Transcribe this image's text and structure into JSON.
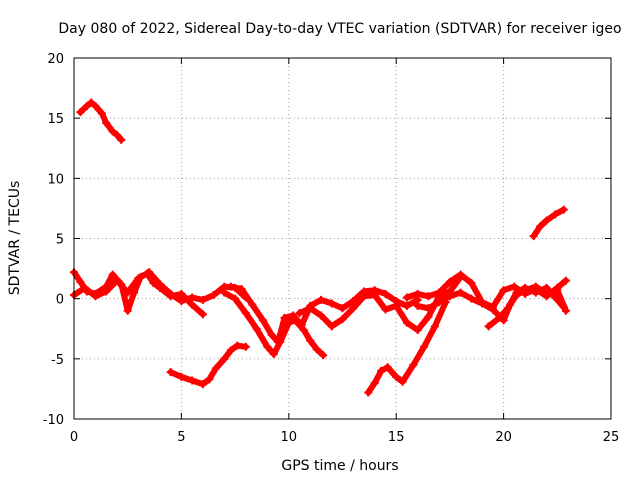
{
  "chart_data": {
    "type": "scatter",
    "title": "Day 080 of 2022, Sidereal Day-to-day VTEC variation (SDTVAR) for receiver igeo",
    "xlabel": "GPS time / hours",
    "ylabel": "SDTVAR / TECUs",
    "xlim": [
      0,
      25
    ],
    "ylim": [
      -10,
      20
    ],
    "xticks": [
      "0",
      "5",
      "10",
      "15",
      "20",
      "25"
    ],
    "yticks": [
      "-10",
      "-5",
      "0",
      "5",
      "10",
      "15",
      "20"
    ],
    "grid": true,
    "color": "#ff0000",
    "series": [
      {
        "name": "arc-01",
        "x": [
          0.3,
          0.6,
          0.8,
          1.0,
          1.3,
          1.5,
          1.8,
          2.0,
          2.2
        ],
        "y": [
          15.5,
          16.0,
          16.3,
          16.0,
          15.4,
          14.6,
          13.9,
          13.6,
          13.2
        ]
      },
      {
        "name": "arc-02",
        "x": [
          4.5,
          5.0,
          5.5,
          6.0,
          6.3,
          6.6,
          7.0,
          7.3,
          7.6,
          8.0
        ],
        "y": [
          -6.1,
          -6.5,
          -6.8,
          -7.1,
          -6.7,
          -5.8,
          -5.0,
          -4.3,
          -3.9,
          -4.0
        ]
      },
      {
        "name": "arc-03",
        "x": [
          13.7,
          14.0,
          14.3,
          14.6,
          15.0,
          15.3,
          15.8,
          16.3,
          16.8,
          17.3
        ],
        "y": [
          -7.8,
          -7.0,
          -6.0,
          -5.7,
          -6.5,
          -6.9,
          -5.5,
          -4.0,
          -2.3,
          -0.3
        ]
      },
      {
        "name": "arc-04",
        "x": [
          21.4,
          21.7,
          22.0,
          22.4,
          22.8
        ],
        "y": [
          5.2,
          6.0,
          6.5,
          7.0,
          7.4
        ]
      },
      {
        "name": "arc-05",
        "x": [
          0.0,
          0.3,
          0.6,
          1.0,
          1.5,
          1.8,
          2.2,
          2.5,
          2.8,
          3.1,
          3.4,
          3.7,
          4.0,
          4.5,
          5.0,
          5.5,
          6.0
        ],
        "y": [
          2.2,
          1.4,
          0.6,
          0.4,
          1.0,
          2.0,
          1.2,
          -1.0,
          0.5,
          1.8,
          2.1,
          1.3,
          0.9,
          0.2,
          0.4,
          -0.5,
          -1.3
        ]
      },
      {
        "name": "arc-06",
        "x": [
          0.0,
          0.5,
          1.0,
          1.5,
          2.0,
          2.5,
          3.0,
          3.5,
          4.0,
          4.5,
          5.0,
          5.5,
          6.0,
          6.5,
          7.0,
          7.5,
          8.0
        ],
        "y": [
          0.3,
          0.9,
          0.2,
          0.6,
          1.5,
          0.5,
          1.7,
          2.2,
          1.2,
          0.4,
          -0.2,
          0.1,
          -0.1,
          0.3,
          1.0,
          0.9,
          0.1
        ]
      },
      {
        "name": "arc-07",
        "x": [
          7.0,
          7.5,
          8.0,
          8.5,
          9.0,
          9.3,
          9.6,
          10.0,
          10.3,
          10.7,
          11.0,
          11.3,
          11.6
        ],
        "y": [
          0.5,
          0.0,
          -1.2,
          -2.5,
          -4.0,
          -4.6,
          -3.6,
          -2.0,
          -1.8,
          -2.6,
          -3.5,
          -4.2,
          -4.7
        ]
      },
      {
        "name": "arc-08",
        "x": [
          7.3,
          7.8,
          8.3,
          8.8,
          9.2,
          9.5,
          9.8,
          10.2,
          10.6,
          11.0,
          11.5,
          12.0,
          12.5,
          13.0,
          13.5,
          14.0,
          14.5,
          15.0,
          15.5,
          16.0
        ],
        "y": [
          1.0,
          0.8,
          -0.5,
          -1.8,
          -3.0,
          -3.6,
          -1.6,
          -1.4,
          -2.2,
          -0.6,
          -0.1,
          -0.4,
          -0.8,
          -0.2,
          0.6,
          0.7,
          0.4,
          -0.2,
          -0.6,
          -0.1
        ]
      },
      {
        "name": "arc-09",
        "x": [
          10.5,
          11.0,
          11.5,
          12.0,
          12.5,
          13.0,
          13.5,
          14.0,
          14.5,
          15.0,
          15.5,
          16.0,
          16.5,
          17.0,
          17.5,
          18.0
        ],
        "y": [
          -1.2,
          -0.8,
          -1.4,
          -2.3,
          -1.7,
          -0.8,
          0.2,
          0.3,
          -0.9,
          -0.6,
          -2.0,
          -2.6,
          -1.5,
          0.2,
          0.6,
          1.8
        ]
      },
      {
        "name": "arc-10",
        "x": [
          15.5,
          16.0,
          16.5,
          17.0,
          17.5,
          18.0,
          18.5,
          19.0,
          19.5,
          20.0,
          20.5,
          21.0,
          21.5,
          22.0,
          22.5,
          22.9
        ],
        "y": [
          0.1,
          0.4,
          0.2,
          0.5,
          1.4,
          2.0,
          1.3,
          -0.3,
          -0.7,
          0.7,
          1.0,
          0.4,
          0.8,
          0.2,
          0.9,
          1.5
        ]
      },
      {
        "name": "arc-11",
        "x": [
          16.0,
          16.5,
          17.0,
          17.5,
          18.0,
          18.5,
          19.0,
          19.5,
          20.0,
          20.3,
          20.6,
          21.0,
          21.5,
          22.0,
          22.5,
          22.9
        ],
        "y": [
          -0.6,
          -0.8,
          -0.3,
          0.2,
          0.5,
          0.0,
          -0.4,
          -0.9,
          -1.8,
          -0.5,
          0.3,
          0.7,
          1.0,
          0.4,
          0.7,
          -1.0
        ]
      },
      {
        "name": "arc-12",
        "x": [
          19.3,
          19.8,
          20.2,
          20.6,
          21.0,
          21.5,
          22.0,
          22.4,
          22.8
        ],
        "y": [
          -2.3,
          -1.6,
          -0.8,
          0.5,
          0.9,
          0.5,
          0.9,
          0.1,
          -0.7
        ]
      }
    ]
  }
}
